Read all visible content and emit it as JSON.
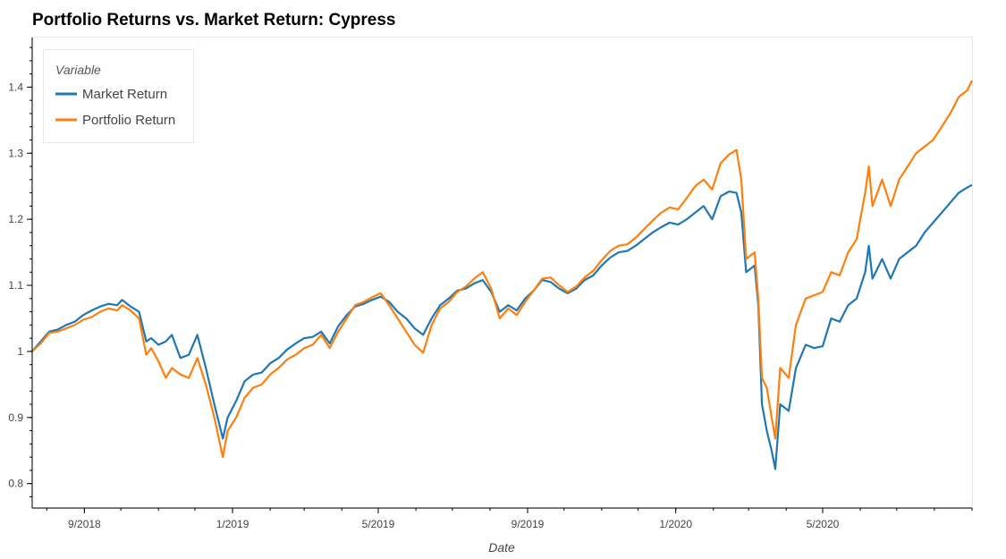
{
  "chart_data": {
    "type": "line",
    "title": "Portfolio Returns vs. Market Return: Cypress",
    "xlabel": "Date",
    "ylabel": "",
    "x_range": [
      "2018-07-20",
      "2020-09-01"
    ],
    "ylim": [
      0.763,
      1.475
    ],
    "x_ticks": [
      {
        "date": "2018-09-01",
        "label": "9/2018"
      },
      {
        "date": "2019-01-01",
        "label": "1/2019"
      },
      {
        "date": "2019-05-01",
        "label": "5/2019"
      },
      {
        "date": "2019-09-01",
        "label": "9/2019"
      },
      {
        "date": "2020-01-01",
        "label": "1/2020"
      },
      {
        "date": "2020-05-01",
        "label": "5/2020"
      }
    ],
    "y_ticks": [
      {
        "value": 0.8,
        "label": "0.8"
      },
      {
        "value": 0.9,
        "label": "0.9"
      },
      {
        "value": 1.0,
        "label": "1"
      },
      {
        "value": 1.1,
        "label": "1.1"
      },
      {
        "value": 1.2,
        "label": "1.2"
      },
      {
        "value": 1.3,
        "label": "1.3"
      },
      {
        "value": 1.4,
        "label": "1.4"
      }
    ],
    "grid": false,
    "legend": {
      "title": "Variable",
      "position": "top-left"
    },
    "series": [
      {
        "name": "Market Return",
        "color": "#1f77b4",
        "points": [
          [
            "2018-07-20",
            1.0
          ],
          [
            "2018-07-27",
            1.015
          ],
          [
            "2018-08-03",
            1.03
          ],
          [
            "2018-08-10",
            1.033
          ],
          [
            "2018-08-17",
            1.04
          ],
          [
            "2018-08-24",
            1.045
          ],
          [
            "2018-08-31",
            1.055
          ],
          [
            "2018-09-07",
            1.062
          ],
          [
            "2018-09-14",
            1.068
          ],
          [
            "2018-09-21",
            1.072
          ],
          [
            "2018-09-28",
            1.07
          ],
          [
            "2018-10-02",
            1.078
          ],
          [
            "2018-10-09",
            1.068
          ],
          [
            "2018-10-16",
            1.06
          ],
          [
            "2018-10-22",
            1.015
          ],
          [
            "2018-10-26",
            1.02
          ],
          [
            "2018-11-01",
            1.01
          ],
          [
            "2018-11-07",
            1.015
          ],
          [
            "2018-11-12",
            1.025
          ],
          [
            "2018-11-19",
            0.99
          ],
          [
            "2018-11-26",
            0.995
          ],
          [
            "2018-12-03",
            1.025
          ],
          [
            "2018-12-10",
            0.975
          ],
          [
            "2018-12-17",
            0.92
          ],
          [
            "2018-12-24",
            0.868
          ],
          [
            "2018-12-28",
            0.9
          ],
          [
            "2019-01-04",
            0.925
          ],
          [
            "2019-01-11",
            0.955
          ],
          [
            "2019-01-18",
            0.965
          ],
          [
            "2019-01-25",
            0.968
          ],
          [
            "2019-02-01",
            0.982
          ],
          [
            "2019-02-08",
            0.99
          ],
          [
            "2019-02-15",
            1.003
          ],
          [
            "2019-02-22",
            1.012
          ],
          [
            "2019-03-01",
            1.02
          ],
          [
            "2019-03-08",
            1.022
          ],
          [
            "2019-03-15",
            1.03
          ],
          [
            "2019-03-22",
            1.012
          ],
          [
            "2019-03-29",
            1.038
          ],
          [
            "2019-04-05",
            1.055
          ],
          [
            "2019-04-12",
            1.068
          ],
          [
            "2019-04-19",
            1.072
          ],
          [
            "2019-04-26",
            1.078
          ],
          [
            "2019-05-03",
            1.083
          ],
          [
            "2019-05-10",
            1.075
          ],
          [
            "2019-05-17",
            1.06
          ],
          [
            "2019-05-24",
            1.05
          ],
          [
            "2019-05-31",
            1.035
          ],
          [
            "2019-06-07",
            1.025
          ],
          [
            "2019-06-14",
            1.05
          ],
          [
            "2019-06-21",
            1.07
          ],
          [
            "2019-06-28",
            1.08
          ],
          [
            "2019-07-05",
            1.092
          ],
          [
            "2019-07-12",
            1.095
          ],
          [
            "2019-07-19",
            1.103
          ],
          [
            "2019-07-26",
            1.108
          ],
          [
            "2019-08-02",
            1.09
          ],
          [
            "2019-08-09",
            1.06
          ],
          [
            "2019-08-16",
            1.07
          ],
          [
            "2019-08-23",
            1.062
          ],
          [
            "2019-08-30",
            1.08
          ],
          [
            "2019-09-06",
            1.092
          ],
          [
            "2019-09-13",
            1.108
          ],
          [
            "2019-09-20",
            1.105
          ],
          [
            "2019-09-27",
            1.095
          ],
          [
            "2019-10-04",
            1.088
          ],
          [
            "2019-10-11",
            1.095
          ],
          [
            "2019-10-18",
            1.108
          ],
          [
            "2019-10-25",
            1.115
          ],
          [
            "2019-11-01",
            1.13
          ],
          [
            "2019-11-08",
            1.142
          ],
          [
            "2019-11-15",
            1.15
          ],
          [
            "2019-11-22",
            1.152
          ],
          [
            "2019-11-29",
            1.16
          ],
          [
            "2019-12-06",
            1.17
          ],
          [
            "2019-12-13",
            1.18
          ],
          [
            "2019-12-20",
            1.188
          ],
          [
            "2019-12-27",
            1.195
          ],
          [
            "2020-01-03",
            1.192
          ],
          [
            "2020-01-10",
            1.2
          ],
          [
            "2020-01-17",
            1.21
          ],
          [
            "2020-01-24",
            1.22
          ],
          [
            "2020-01-31",
            1.2
          ],
          [
            "2020-02-07",
            1.235
          ],
          [
            "2020-02-14",
            1.242
          ],
          [
            "2020-02-20",
            1.24
          ],
          [
            "2020-02-24",
            1.21
          ],
          [
            "2020-02-28",
            1.12
          ],
          [
            "2020-03-06",
            1.13
          ],
          [
            "2020-03-09",
            1.07
          ],
          [
            "2020-03-12",
            0.92
          ],
          [
            "2020-03-16",
            0.88
          ],
          [
            "2020-03-20",
            0.85
          ],
          [
            "2020-03-23",
            0.822
          ],
          [
            "2020-03-27",
            0.92
          ],
          [
            "2020-04-03",
            0.91
          ],
          [
            "2020-04-09",
            0.975
          ],
          [
            "2020-04-17",
            1.01
          ],
          [
            "2020-04-24",
            1.005
          ],
          [
            "2020-05-01",
            1.008
          ],
          [
            "2020-05-08",
            1.05
          ],
          [
            "2020-05-15",
            1.045
          ],
          [
            "2020-05-22",
            1.07
          ],
          [
            "2020-05-29",
            1.08
          ],
          [
            "2020-06-05",
            1.12
          ],
          [
            "2020-06-08",
            1.16
          ],
          [
            "2020-06-11",
            1.11
          ],
          [
            "2020-06-19",
            1.14
          ],
          [
            "2020-06-26",
            1.11
          ],
          [
            "2020-07-03",
            1.14
          ],
          [
            "2020-07-10",
            1.15
          ],
          [
            "2020-07-17",
            1.16
          ],
          [
            "2020-07-24",
            1.18
          ],
          [
            "2020-07-31",
            1.195
          ],
          [
            "2020-08-07",
            1.21
          ],
          [
            "2020-08-14",
            1.225
          ],
          [
            "2020-08-21",
            1.24
          ],
          [
            "2020-08-28",
            1.248
          ],
          [
            "2020-09-01",
            1.252
          ]
        ]
      },
      {
        "name": "Portfolio Return",
        "color": "#ff7f0e",
        "points": [
          [
            "2018-07-20",
            1.0
          ],
          [
            "2018-07-27",
            1.012
          ],
          [
            "2018-08-03",
            1.028
          ],
          [
            "2018-08-10",
            1.03
          ],
          [
            "2018-08-17",
            1.035
          ],
          [
            "2018-08-24",
            1.04
          ],
          [
            "2018-08-31",
            1.048
          ],
          [
            "2018-09-07",
            1.052
          ],
          [
            "2018-09-14",
            1.06
          ],
          [
            "2018-09-21",
            1.065
          ],
          [
            "2018-09-28",
            1.062
          ],
          [
            "2018-10-02",
            1.07
          ],
          [
            "2018-10-09",
            1.062
          ],
          [
            "2018-10-16",
            1.05
          ],
          [
            "2018-10-22",
            0.995
          ],
          [
            "2018-10-26",
            1.005
          ],
          [
            "2018-11-01",
            0.985
          ],
          [
            "2018-11-07",
            0.96
          ],
          [
            "2018-11-12",
            0.975
          ],
          [
            "2018-11-19",
            0.965
          ],
          [
            "2018-11-26",
            0.96
          ],
          [
            "2018-12-03",
            0.99
          ],
          [
            "2018-12-10",
            0.95
          ],
          [
            "2018-12-17",
            0.9
          ],
          [
            "2018-12-24",
            0.84
          ],
          [
            "2018-12-28",
            0.88
          ],
          [
            "2019-01-04",
            0.9
          ],
          [
            "2019-01-11",
            0.93
          ],
          [
            "2019-01-18",
            0.945
          ],
          [
            "2019-01-25",
            0.95
          ],
          [
            "2019-02-01",
            0.965
          ],
          [
            "2019-02-08",
            0.975
          ],
          [
            "2019-02-15",
            0.988
          ],
          [
            "2019-02-22",
            0.995
          ],
          [
            "2019-03-01",
            1.005
          ],
          [
            "2019-03-08",
            1.01
          ],
          [
            "2019-03-15",
            1.025
          ],
          [
            "2019-03-22",
            1.005
          ],
          [
            "2019-03-29",
            1.03
          ],
          [
            "2019-04-05",
            1.05
          ],
          [
            "2019-04-12",
            1.07
          ],
          [
            "2019-04-19",
            1.075
          ],
          [
            "2019-04-26",
            1.082
          ],
          [
            "2019-05-03",
            1.088
          ],
          [
            "2019-05-10",
            1.07
          ],
          [
            "2019-05-17",
            1.05
          ],
          [
            "2019-05-24",
            1.03
          ],
          [
            "2019-05-31",
            1.01
          ],
          [
            "2019-06-07",
            0.998
          ],
          [
            "2019-06-14",
            1.04
          ],
          [
            "2019-06-21",
            1.065
          ],
          [
            "2019-06-28",
            1.075
          ],
          [
            "2019-07-05",
            1.09
          ],
          [
            "2019-07-12",
            1.098
          ],
          [
            "2019-07-19",
            1.11
          ],
          [
            "2019-07-26",
            1.12
          ],
          [
            "2019-08-02",
            1.095
          ],
          [
            "2019-08-09",
            1.05
          ],
          [
            "2019-08-16",
            1.065
          ],
          [
            "2019-08-23",
            1.055
          ],
          [
            "2019-08-30",
            1.075
          ],
          [
            "2019-09-06",
            1.092
          ],
          [
            "2019-09-13",
            1.11
          ],
          [
            "2019-09-20",
            1.112
          ],
          [
            "2019-09-27",
            1.1
          ],
          [
            "2019-10-04",
            1.09
          ],
          [
            "2019-10-11",
            1.098
          ],
          [
            "2019-10-18",
            1.112
          ],
          [
            "2019-10-25",
            1.122
          ],
          [
            "2019-11-01",
            1.138
          ],
          [
            "2019-11-08",
            1.152
          ],
          [
            "2019-11-15",
            1.16
          ],
          [
            "2019-11-22",
            1.162
          ],
          [
            "2019-11-29",
            1.172
          ],
          [
            "2019-12-06",
            1.185
          ],
          [
            "2019-12-13",
            1.198
          ],
          [
            "2019-12-20",
            1.21
          ],
          [
            "2019-12-27",
            1.218
          ],
          [
            "2020-01-03",
            1.215
          ],
          [
            "2020-01-10",
            1.232
          ],
          [
            "2020-01-17",
            1.25
          ],
          [
            "2020-01-24",
            1.26
          ],
          [
            "2020-01-31",
            1.245
          ],
          [
            "2020-02-07",
            1.285
          ],
          [
            "2020-02-14",
            1.298
          ],
          [
            "2020-02-20",
            1.305
          ],
          [
            "2020-02-24",
            1.26
          ],
          [
            "2020-02-28",
            1.14
          ],
          [
            "2020-03-06",
            1.15
          ],
          [
            "2020-03-09",
            1.08
          ],
          [
            "2020-03-12",
            0.96
          ],
          [
            "2020-03-16",
            0.945
          ],
          [
            "2020-03-20",
            0.9
          ],
          [
            "2020-03-23",
            0.868
          ],
          [
            "2020-03-27",
            0.975
          ],
          [
            "2020-04-03",
            0.96
          ],
          [
            "2020-04-09",
            1.04
          ],
          [
            "2020-04-17",
            1.08
          ],
          [
            "2020-04-24",
            1.085
          ],
          [
            "2020-05-01",
            1.09
          ],
          [
            "2020-05-08",
            1.12
          ],
          [
            "2020-05-15",
            1.115
          ],
          [
            "2020-05-22",
            1.15
          ],
          [
            "2020-05-29",
            1.17
          ],
          [
            "2020-06-05",
            1.24
          ],
          [
            "2020-06-08",
            1.28
          ],
          [
            "2020-06-11",
            1.22
          ],
          [
            "2020-06-19",
            1.26
          ],
          [
            "2020-06-26",
            1.22
          ],
          [
            "2020-07-03",
            1.26
          ],
          [
            "2020-07-10",
            1.28
          ],
          [
            "2020-07-17",
            1.3
          ],
          [
            "2020-07-24",
            1.31
          ],
          [
            "2020-07-31",
            1.32
          ],
          [
            "2020-08-07",
            1.34
          ],
          [
            "2020-08-14",
            1.36
          ],
          [
            "2020-08-21",
            1.385
          ],
          [
            "2020-08-28",
            1.395
          ],
          [
            "2020-09-01",
            1.41
          ]
        ]
      }
    ]
  }
}
